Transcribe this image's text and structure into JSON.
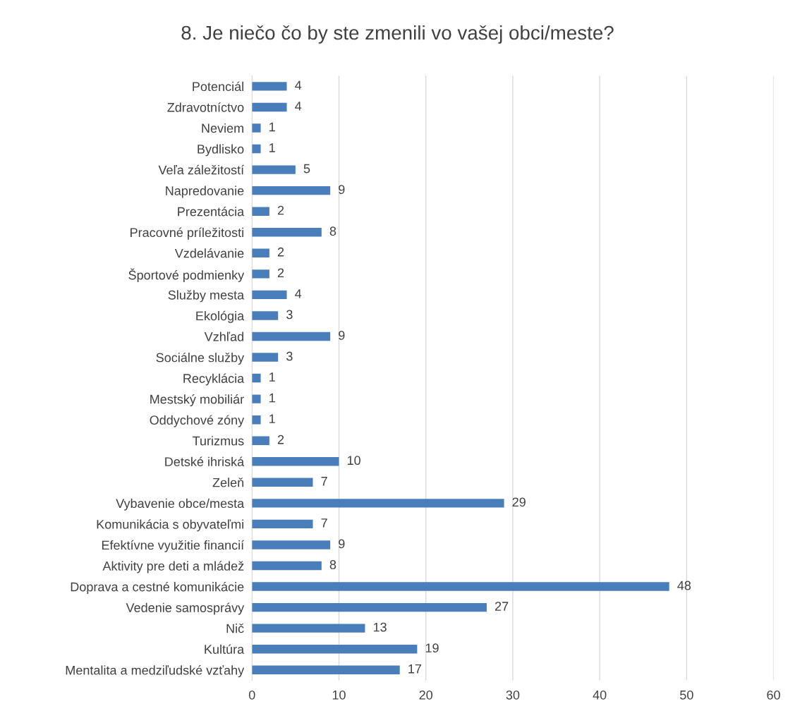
{
  "chart_data": {
    "type": "bar",
    "orientation": "horizontal",
    "title": "8. Je niečo čo by ste zmenili vo vašej obci/meste?",
    "categories": [
      "Potenciál",
      "Zdravotníctvo",
      "Neviem",
      "Bydlisko",
      "Veľa záležitostí",
      "Napredovanie",
      "Prezentácia",
      "Pracovné príležitosti",
      "Vzdelávanie",
      "Športové podmienky",
      "Služby mesta",
      "Ekológia",
      "Vzhľad",
      "Sociálne služby",
      "Recyklácia",
      "Mestský mobiliár",
      "Oddychové zóny",
      "Turizmus",
      "Detské ihriská",
      "Zeleň",
      "Vybavenie obce/mesta",
      "Komunikácia s obyvateľmi",
      "Efektívne využitie financií",
      "Aktivity pre deti a mládež",
      "Doprava a cestné komunikácie",
      "Vedenie samosprávy",
      "Nič",
      "Kultúra",
      "Mentalita a medziľudské vzťahy"
    ],
    "values": [
      4,
      4,
      1,
      1,
      5,
      9,
      2,
      8,
      2,
      2,
      4,
      3,
      9,
      3,
      1,
      1,
      1,
      2,
      10,
      7,
      29,
      7,
      9,
      8,
      48,
      27,
      13,
      19,
      17
    ],
    "color": "#4a7ebb",
    "xlim": [
      0,
      60
    ],
    "xticks": [
      0,
      10,
      20,
      30,
      40,
      50,
      60
    ],
    "grid": "x",
    "data_labels": true,
    "legend": false
  }
}
